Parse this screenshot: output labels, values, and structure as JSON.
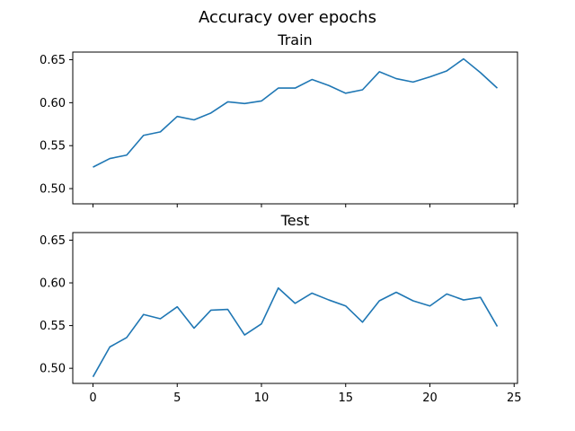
{
  "figure": {
    "suptitle": "Accuracy over epochs",
    "line_color": "#1f77b4"
  },
  "chart_data": [
    {
      "type": "line",
      "title": "Train",
      "xlabel": "",
      "ylabel": "",
      "xlim": [
        -1.2,
        25.2
      ],
      "ylim": [
        0.4823,
        0.6589
      ],
      "xticks": [
        0,
        5,
        10,
        15,
        20,
        25
      ],
      "yticks": [
        0.5,
        0.55,
        0.6,
        0.65
      ],
      "ytick_labels": [
        "0.50",
        "0.55",
        "0.60",
        "0.65"
      ],
      "show_xtick_labels": false,
      "grid": false,
      "series": [
        {
          "x": [
            0,
            1,
            2,
            3,
            4,
            5,
            6,
            7,
            8,
            9,
            10,
            11,
            12,
            13,
            14,
            15,
            16,
            17,
            18,
            19,
            20,
            21,
            22,
            23,
            24
          ],
          "values": [
            0.525,
            0.535,
            0.539,
            0.562,
            0.566,
            0.584,
            0.58,
            0.588,
            0.601,
            0.599,
            0.602,
            0.617,
            0.617,
            0.627,
            0.62,
            0.611,
            0.615,
            0.636,
            0.628,
            0.624,
            0.63,
            0.637,
            0.651,
            0.635,
            0.617
          ]
        }
      ]
    },
    {
      "type": "line",
      "title": "Test",
      "xlabel": "",
      "ylabel": "",
      "xlim": [
        -1.2,
        25.2
      ],
      "ylim": [
        0.4823,
        0.6589
      ],
      "xticks": [
        0,
        5,
        10,
        15,
        20,
        25
      ],
      "xtick_labels": [
        "0",
        "5",
        "10",
        "15",
        "20",
        "25"
      ],
      "yticks": [
        0.5,
        0.55,
        0.6,
        0.65
      ],
      "ytick_labels": [
        "0.50",
        "0.55",
        "0.60",
        "0.65"
      ],
      "show_xtick_labels": true,
      "grid": false,
      "series": [
        {
          "x": [
            0,
            1,
            2,
            3,
            4,
            5,
            6,
            7,
            8,
            9,
            10,
            11,
            12,
            13,
            14,
            15,
            16,
            17,
            18,
            19,
            20,
            21,
            22,
            23,
            24
          ],
          "values": [
            0.49,
            0.525,
            0.536,
            0.563,
            0.558,
            0.572,
            0.547,
            0.568,
            0.569,
            0.539,
            0.552,
            0.594,
            0.576,
            0.588,
            0.58,
            0.573,
            0.554,
            0.579,
            0.589,
            0.579,
            0.573,
            0.587,
            0.58,
            0.583,
            0.549
          ]
        }
      ]
    }
  ]
}
